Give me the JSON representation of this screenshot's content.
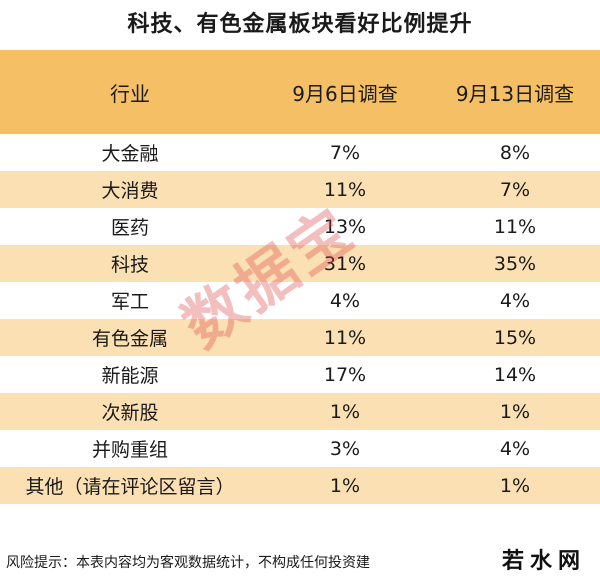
{
  "chart_data": {
    "type": "table",
    "title": "科技、有色金属板块看好比例提升",
    "columns": [
      "行业",
      "9月6日调查",
      "9月13日调查"
    ],
    "rows": [
      [
        "大金融",
        "7%",
        "8%"
      ],
      [
        "大消费",
        "11%",
        "7%"
      ],
      [
        "医药",
        "13%",
        "11%"
      ],
      [
        "科技",
        "31%",
        "35%"
      ],
      [
        "军工",
        "4%",
        "4%"
      ],
      [
        "有色金属",
        "11%",
        "15%"
      ],
      [
        "新能源",
        "17%",
        "14%"
      ],
      [
        "次新股",
        "1%",
        "1%"
      ],
      [
        "并购重组",
        "3%",
        "4%"
      ],
      [
        "其他（请在评论区留言）",
        "1%",
        "1%"
      ]
    ]
  },
  "footer": "风险提示：本表内容均为客观数据统计，不构成任何投资建",
  "watermark": "数据宝",
  "logo": "若水网",
  "colors": {
    "header_bg": "#f5bf65",
    "stripe_bg": "#fbe0b4",
    "watermark": "#dc4646"
  }
}
